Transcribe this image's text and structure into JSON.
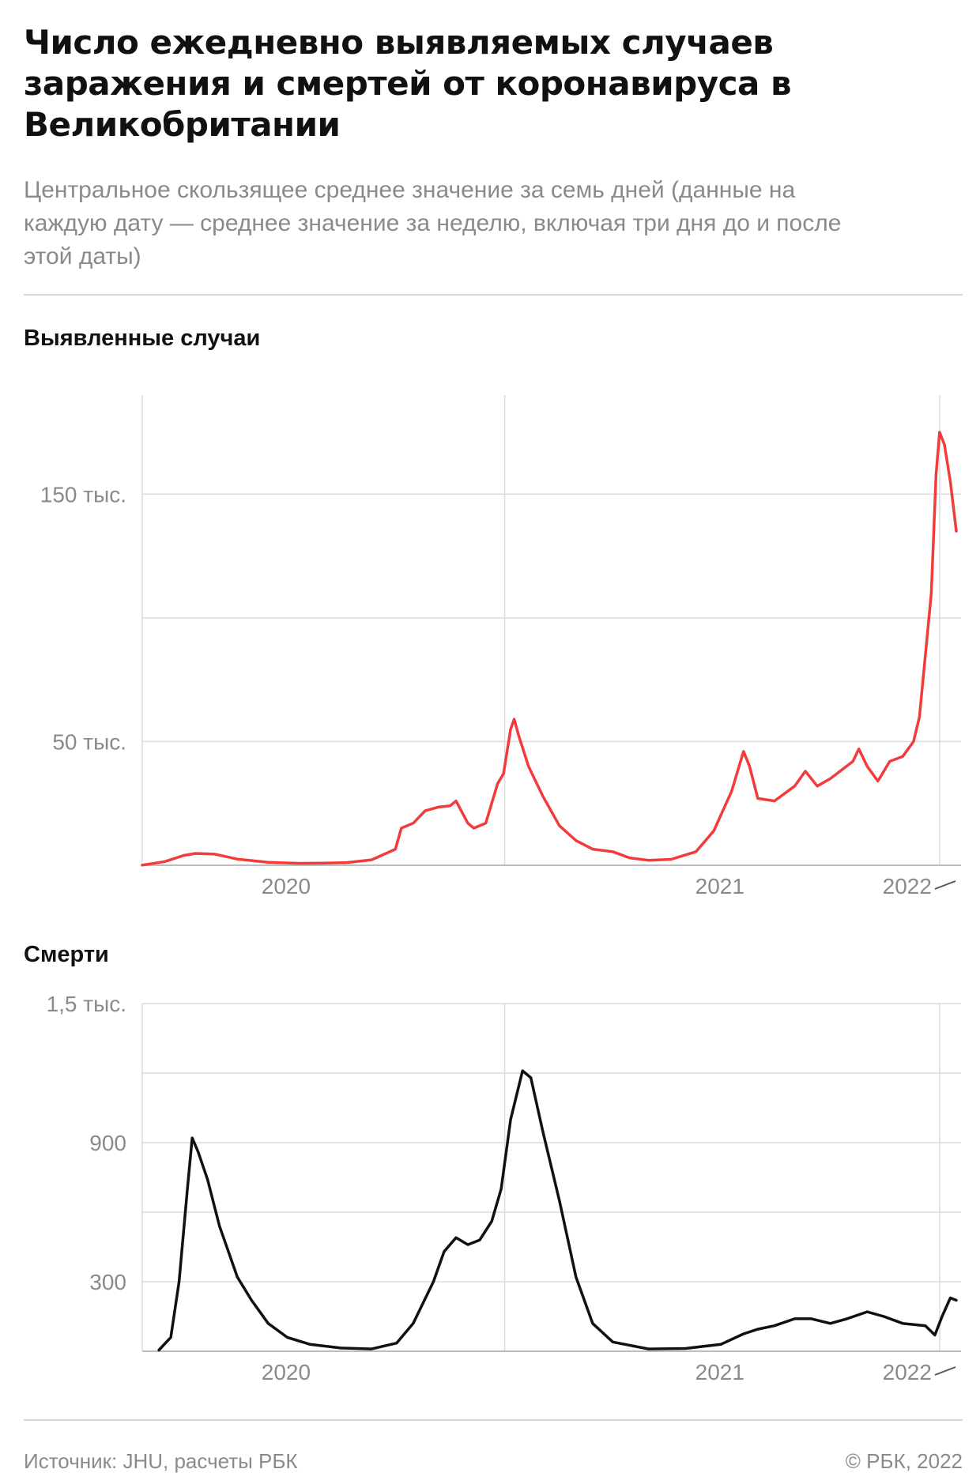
{
  "title": "Число ежедневно выявляемых случаев заражения и смертей от коронавируса в Великобритании",
  "subtitle": "Центральное скользящее среднее значение за семь дней (данные на каждую дату — среднее значение за неделю, включая три дня до и после этой даты)",
  "source": "Источник: JHU, расчеты РБК",
  "copyright": "© РБК, 2022",
  "colors": {
    "cases_line": "#f23c3c",
    "deaths_line": "#111111",
    "grid": "#dcdcdc",
    "axis": "#bdbdbd",
    "tick_text": "#8a8a8a"
  },
  "chart_data": [
    {
      "type": "line",
      "title": "Выявленные случаи",
      "y_range": [
        0,
        190000
      ],
      "y_gridlines": [
        50000,
        100000,
        150000
      ],
      "y_tick_labels": [
        {
          "value": 50000,
          "label": "50 тыс."
        },
        {
          "value": 150000,
          "label": "150 тыс."
        }
      ],
      "x_range": [
        "2020-03-01",
        "2022-01-15"
      ],
      "x_gridlines": [
        "2020-12-31",
        "2022-01-01"
      ],
      "x_tick_labels": [
        {
          "date": "2020-06-30",
          "label": "2020"
        },
        {
          "date": "2021-06-30",
          "label": "2021"
        },
        {
          "date": "2022-01-01",
          "label": "2022"
        }
      ],
      "series": [
        {
          "color": "#f23c3c",
          "points": [
            [
              "2020-03-01",
              50
            ],
            [
              "2020-03-20",
              1500
            ],
            [
              "2020-04-05",
              4000
            ],
            [
              "2020-04-15",
              4800
            ],
            [
              "2020-05-01",
              4500
            ],
            [
              "2020-05-20",
              2500
            ],
            [
              "2020-06-15",
              1200
            ],
            [
              "2020-07-10",
              800
            ],
            [
              "2020-08-01",
              900
            ],
            [
              "2020-08-20",
              1100
            ],
            [
              "2020-09-10",
              2200
            ],
            [
              "2020-09-30",
              6500
            ],
            [
              "2020-10-05",
              15000
            ],
            [
              "2020-10-15",
              17000
            ],
            [
              "2020-10-25",
              22000
            ],
            [
              "2020-11-05",
              23500
            ],
            [
              "2020-11-15",
              24000
            ],
            [
              "2020-11-20",
              26000
            ],
            [
              "2020-11-30",
              17000
            ],
            [
              "2020-12-05",
              15000
            ],
            [
              "2020-12-15",
              17000
            ],
            [
              "2020-12-25",
              33000
            ],
            [
              "2020-12-30",
              37000
            ],
            [
              "2021-01-05",
              55000
            ],
            [
              "2021-01-08",
              59000
            ],
            [
              "2021-01-12",
              52000
            ],
            [
              "2021-01-20",
              40000
            ],
            [
              "2021-02-01",
              28000
            ],
            [
              "2021-02-15",
              16000
            ],
            [
              "2021-03-01",
              10000
            ],
            [
              "2021-03-15",
              6500
            ],
            [
              "2021-04-01",
              5500
            ],
            [
              "2021-04-15",
              3000
            ],
            [
              "2021-05-01",
              2000
            ],
            [
              "2021-05-20",
              2400
            ],
            [
              "2021-06-10",
              5500
            ],
            [
              "2021-06-25",
              14000
            ],
            [
              "2021-07-10",
              30000
            ],
            [
              "2021-07-20",
              46000
            ],
            [
              "2021-07-25",
              40000
            ],
            [
              "2021-08-01",
              27000
            ],
            [
              "2021-08-15",
              26000
            ],
            [
              "2021-09-01",
              32000
            ],
            [
              "2021-09-10",
              38000
            ],
            [
              "2021-09-20",
              32000
            ],
            [
              "2021-10-01",
              35000
            ],
            [
              "2021-10-20",
              42000
            ],
            [
              "2021-10-25",
              47000
            ],
            [
              "2021-11-01",
              40000
            ],
            [
              "2021-11-10",
              34000
            ],
            [
              "2021-11-20",
              42000
            ],
            [
              "2021-12-01",
              44000
            ],
            [
              "2021-12-10",
              50000
            ],
            [
              "2021-12-15",
              60000
            ],
            [
              "2021-12-20",
              85000
            ],
            [
              "2021-12-25",
              110000
            ],
            [
              "2021-12-29",
              158000
            ],
            [
              "2022-01-01",
              175000
            ],
            [
              "2022-01-05",
              170000
            ],
            [
              "2022-01-10",
              155000
            ],
            [
              "2022-01-15",
              135000
            ]
          ]
        }
      ]
    },
    {
      "type": "line",
      "title": "Смерти",
      "y_range": [
        0,
        1500
      ],
      "y_gridlines": [
        300,
        600,
        900,
        1200,
        1500
      ],
      "y_tick_labels": [
        {
          "value": 300,
          "label": "300"
        },
        {
          "value": 900,
          "label": "900"
        },
        {
          "value": 1500,
          "label": "1,5 тыс."
        }
      ],
      "x_range": [
        "2020-03-01",
        "2022-01-15"
      ],
      "x_gridlines": [
        "2020-12-31",
        "2022-01-01"
      ],
      "x_tick_labels": [
        {
          "date": "2020-06-30",
          "label": "2020"
        },
        {
          "date": "2021-06-30",
          "label": "2021"
        },
        {
          "date": "2022-01-01",
          "label": "2022"
        }
      ],
      "series": [
        {
          "color": "#111111",
          "points": [
            [
              "2020-03-15",
              5
            ],
            [
              "2020-03-25",
              60
            ],
            [
              "2020-04-01",
              300
            ],
            [
              "2020-04-08",
              700
            ],
            [
              "2020-04-12",
              920
            ],
            [
              "2020-04-17",
              860
            ],
            [
              "2020-04-25",
              740
            ],
            [
              "2020-05-05",
              540
            ],
            [
              "2020-05-20",
              320
            ],
            [
              "2020-06-01",
              220
            ],
            [
              "2020-06-15",
              120
            ],
            [
              "2020-07-01",
              60
            ],
            [
              "2020-07-20",
              30
            ],
            [
              "2020-08-15",
              14
            ],
            [
              "2020-09-10",
              10
            ],
            [
              "2020-10-01",
              35
            ],
            [
              "2020-10-15",
              120
            ],
            [
              "2020-11-01",
              300
            ],
            [
              "2020-11-10",
              430
            ],
            [
              "2020-11-20",
              490
            ],
            [
              "2020-11-30",
              460
            ],
            [
              "2020-12-10",
              480
            ],
            [
              "2020-12-20",
              560
            ],
            [
              "2020-12-28",
              700
            ],
            [
              "2021-01-05",
              1000
            ],
            [
              "2021-01-15",
              1210
            ],
            [
              "2021-01-22",
              1180
            ],
            [
              "2021-02-01",
              950
            ],
            [
              "2021-02-15",
              650
            ],
            [
              "2021-03-01",
              320
            ],
            [
              "2021-03-15",
              120
            ],
            [
              "2021-04-01",
              40
            ],
            [
              "2021-05-01",
              10
            ],
            [
              "2021-06-01",
              12
            ],
            [
              "2021-07-01",
              30
            ],
            [
              "2021-07-20",
              75
            ],
            [
              "2021-08-01",
              95
            ],
            [
              "2021-08-15",
              110
            ],
            [
              "2021-09-01",
              140
            ],
            [
              "2021-09-15",
              140
            ],
            [
              "2021-10-01",
              120
            ],
            [
              "2021-10-15",
              140
            ],
            [
              "2021-11-01",
              170
            ],
            [
              "2021-11-15",
              150
            ],
            [
              "2021-12-01",
              120
            ],
            [
              "2021-12-20",
              110
            ],
            [
              "2021-12-28",
              70
            ],
            [
              "2022-01-03",
              150
            ],
            [
              "2022-01-10",
              230
            ],
            [
              "2022-01-15",
              220
            ]
          ]
        }
      ]
    }
  ]
}
